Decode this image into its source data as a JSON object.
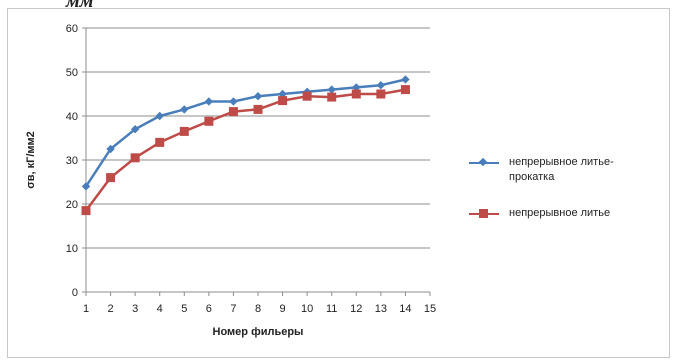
{
  "header_fragment": "мм",
  "chart_data": {
    "type": "line",
    "title": "",
    "xlabel": "Номер фильеры",
    "ylabel": "σв, кГ/мм2",
    "x_ticks": [
      1,
      2,
      3,
      4,
      5,
      6,
      7,
      8,
      9,
      10,
      11,
      12,
      13,
      14,
      15
    ],
    "y_ticks": [
      0,
      10,
      20,
      30,
      40,
      50,
      60
    ],
    "xlim": [
      1,
      15
    ],
    "ylim": [
      0,
      60
    ],
    "grid": "horizontal",
    "legend_position": "right",
    "series": [
      {
        "name": "непрерывное литье-прокатка",
        "color": "#4a7ebb",
        "marker": "diamond",
        "x": [
          1,
          2,
          3,
          4,
          5,
          6,
          7,
          8,
          9,
          10,
          11,
          12,
          13,
          14
        ],
        "values": [
          24,
          32.5,
          37,
          40,
          41.5,
          43.3,
          43.3,
          44.5,
          45,
          45.5,
          46,
          46.5,
          47,
          48.3
        ]
      },
      {
        "name": "непрерывное литье",
        "color": "#be4b48",
        "marker": "square",
        "x": [
          1,
          2,
          3,
          4,
          5,
          6,
          7,
          8,
          9,
          10,
          11,
          12,
          13,
          14
        ],
        "values": [
          18.5,
          26,
          30.5,
          34,
          36.5,
          38.8,
          41,
          41.5,
          43.5,
          44.5,
          44.3,
          45,
          45,
          46
        ]
      }
    ]
  }
}
